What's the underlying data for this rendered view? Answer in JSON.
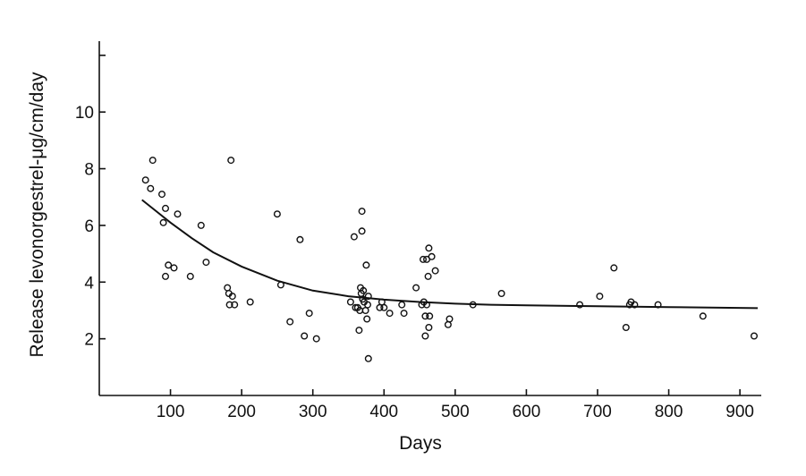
{
  "chart_data": {
    "type": "scatter",
    "xlabel": "Days",
    "ylabel": "Release levonorgestrel-μg/cm/day",
    "xlim": [
      0,
      930
    ],
    "ylim": [
      0,
      12.5
    ],
    "xticks": [
      100,
      200,
      300,
      400,
      500,
      600,
      700,
      800,
      900
    ],
    "xtick_labels": [
      "100",
      "200",
      "300",
      "400",
      "500",
      "600",
      "700",
      "800",
      "900"
    ],
    "yticks": [
      2,
      4,
      6,
      8,
      10,
      12
    ],
    "ytick_labels": [
      "2",
      "4",
      "6",
      "8",
      "10",
      ""
    ],
    "grid": false,
    "series": [
      {
        "type": "scatter",
        "marker": "open-circle",
        "points": [
          [
            65,
            7.6
          ],
          [
            72,
            7.3
          ],
          [
            75,
            8.3
          ],
          [
            88,
            7.1
          ],
          [
            90,
            6.1
          ],
          [
            93,
            6.6
          ],
          [
            93,
            4.2
          ],
          [
            97,
            4.6
          ],
          [
            105,
            4.5
          ],
          [
            110,
            6.4
          ],
          [
            128,
            4.2
          ],
          [
            143,
            6.0
          ],
          [
            150,
            4.7
          ],
          [
            180,
            3.8
          ],
          [
            182,
            3.6
          ],
          [
            183,
            3.2
          ],
          [
            185,
            8.3
          ],
          [
            187,
            3.5
          ],
          [
            190,
            3.2
          ],
          [
            212,
            3.3
          ],
          [
            250,
            6.4
          ],
          [
            255,
            3.9
          ],
          [
            268,
            2.6
          ],
          [
            282,
            5.5
          ],
          [
            288,
            2.1
          ],
          [
            295,
            2.9
          ],
          [
            305,
            2.0
          ],
          [
            353,
            3.3
          ],
          [
            358,
            5.6
          ],
          [
            360,
            3.1
          ],
          [
            363,
            3.1
          ],
          [
            365,
            2.3
          ],
          [
            366,
            3.0
          ],
          [
            367,
            3.8
          ],
          [
            368,
            3.6
          ],
          [
            369,
            6.5
          ],
          [
            369,
            5.8
          ],
          [
            370,
            3.4
          ],
          [
            371,
            3.7
          ],
          [
            372,
            3.3
          ],
          [
            374,
            3.0
          ],
          [
            375,
            4.6
          ],
          [
            376,
            2.7
          ],
          [
            377,
            3.2
          ],
          [
            378,
            3.5
          ],
          [
            378,
            1.3
          ],
          [
            394,
            3.1
          ],
          [
            397,
            3.3
          ],
          [
            400,
            3.1
          ],
          [
            408,
            2.9
          ],
          [
            425,
            3.2
          ],
          [
            428,
            2.9
          ],
          [
            445,
            3.8
          ],
          [
            453,
            3.2
          ],
          [
            455,
            4.8
          ],
          [
            456,
            3.3
          ],
          [
            458,
            2.8
          ],
          [
            458,
            2.1
          ],
          [
            460,
            3.2
          ],
          [
            460,
            4.8
          ],
          [
            462,
            4.2
          ],
          [
            463,
            5.2
          ],
          [
            463,
            2.4
          ],
          [
            464,
            2.8
          ],
          [
            467,
            4.9
          ],
          [
            472,
            4.4
          ],
          [
            490,
            2.5
          ],
          [
            492,
            2.7
          ],
          [
            525,
            3.2
          ],
          [
            565,
            3.6
          ],
          [
            675,
            3.2
          ],
          [
            703,
            3.5
          ],
          [
            723,
            4.5
          ],
          [
            740,
            2.4
          ],
          [
            745,
            3.2
          ],
          [
            747,
            3.3
          ],
          [
            752,
            3.2
          ],
          [
            785,
            3.2
          ],
          [
            848,
            2.8
          ],
          [
            920,
            2.1
          ]
        ]
      },
      {
        "type": "line",
        "style": "fitted-curve",
        "points": [
          [
            60,
            6.9
          ],
          [
            80,
            6.5
          ],
          [
            100,
            6.1
          ],
          [
            130,
            5.55
          ],
          [
            160,
            5.05
          ],
          [
            200,
            4.55
          ],
          [
            250,
            4.05
          ],
          [
            300,
            3.7
          ],
          [
            350,
            3.5
          ],
          [
            400,
            3.38
          ],
          [
            450,
            3.3
          ],
          [
            500,
            3.24
          ],
          [
            550,
            3.2
          ],
          [
            600,
            3.18
          ],
          [
            700,
            3.15
          ],
          [
            800,
            3.12
          ],
          [
            925,
            3.08
          ]
        ]
      }
    ]
  }
}
